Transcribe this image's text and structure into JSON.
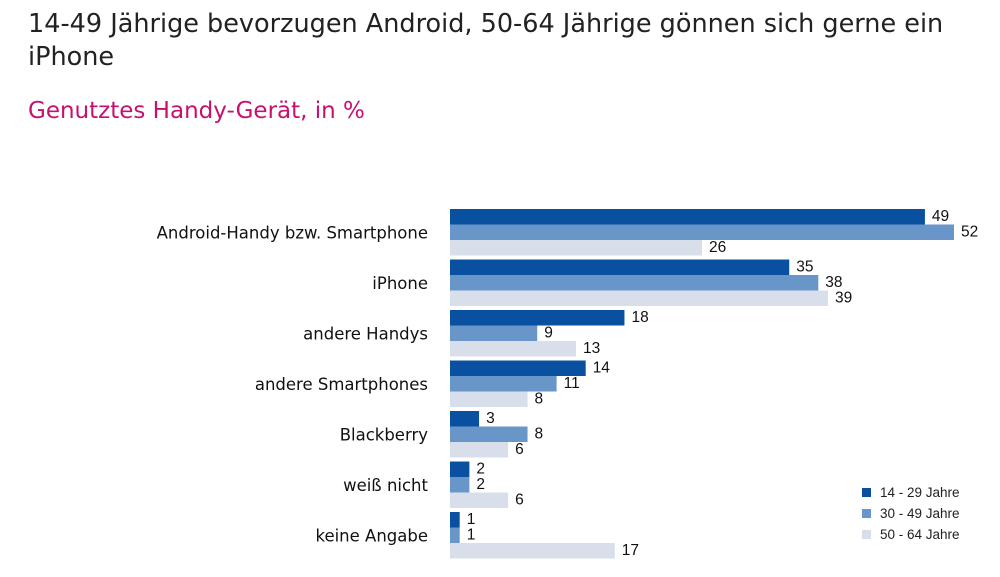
{
  "header": {
    "title": "14-49 Jährige bevorzugen Android, 50-64 Jährige gönnen sich gerne ein iPhone",
    "subtitle": "Genutztes Handy-Gerät, in %"
  },
  "chart_data": {
    "type": "bar",
    "orientation": "horizontal",
    "title": "14-49 Jährige bevorzugen Android, 50-64 Jährige gönnen sich gerne ein iPhone",
    "subtitle": "Genutztes Handy-Gerät, in %",
    "xlabel": "",
    "ylabel": "",
    "xlim": [
      0,
      52
    ],
    "grid": false,
    "legend_position": "bottom-right",
    "categories": [
      "Android-Handy bzw. Smartphone",
      "iPhone",
      "andere Handys",
      "andere Smartphones",
      "Blackberry",
      "weiß nicht",
      "keine Angabe"
    ],
    "series": [
      {
        "name": "14 - 29 Jahre",
        "color": "#0a50a1",
        "values": [
          49,
          35,
          18,
          14,
          3,
          2,
          1
        ]
      },
      {
        "name": "30 - 49 Jahre",
        "color": "#6896c9",
        "values": [
          52,
          38,
          9,
          11,
          8,
          2,
          1
        ]
      },
      {
        "name": "50 - 64 Jahre",
        "color": "#d8dfea",
        "values": [
          26,
          39,
          13,
          8,
          6,
          6,
          17
        ]
      }
    ]
  }
}
